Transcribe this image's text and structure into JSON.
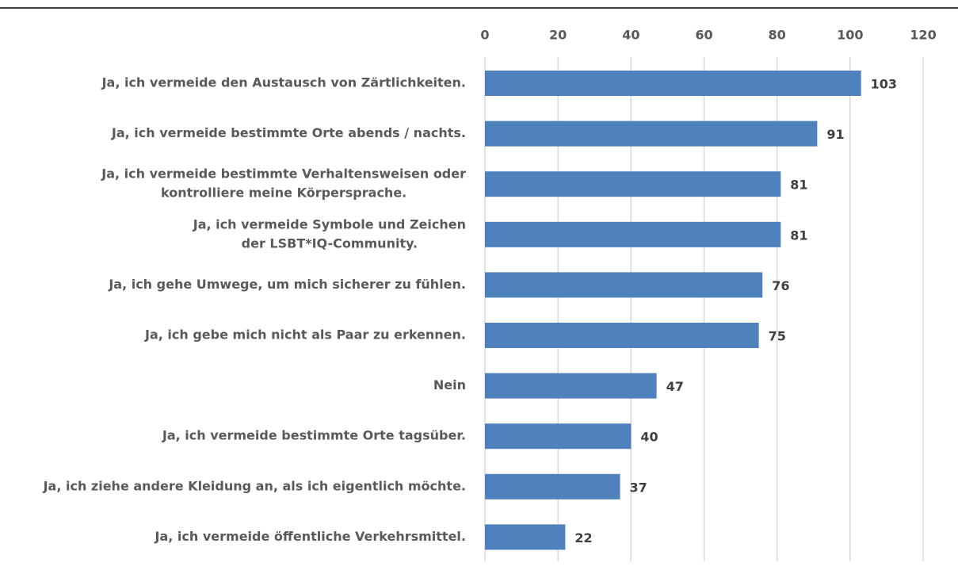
{
  "chart_data": {
    "type": "barh",
    "categories": [
      "Ja, ich vermeide den Austausch von Zärtlichkeiten.",
      "Ja, ich vermeide bestimmte Orte abends / nachts.",
      [
        "Ja, ich vermeide bestimmte Verhaltensweisen oder",
        "kontrolliere meine Körpersprache."
      ],
      [
        "Ja, ich vermeide Symbole und Zeichen",
        "der LSBT*IQ-Community."
      ],
      "Ja, ich gehe Umwege, um mich sicherer zu fühlen.",
      "Ja, ich gebe mich nicht als Paar zu erkennen.",
      "Nein",
      "Ja, ich vermeide bestimmte Orte tagsüber.",
      "Ja, ich ziehe andere Kleidung an, als ich eigentlich möchte.",
      "Ja, ich vermeide öffentliche Verkehrsmittel."
    ],
    "values": [
      103,
      91,
      81,
      81,
      76,
      75,
      47,
      40,
      37,
      22
    ],
    "color": "#4f81bd",
    "xlim": [
      0,
      120
    ],
    "xticks": [
      0,
      20,
      40,
      60,
      80,
      100,
      120
    ],
    "grid": true
  }
}
